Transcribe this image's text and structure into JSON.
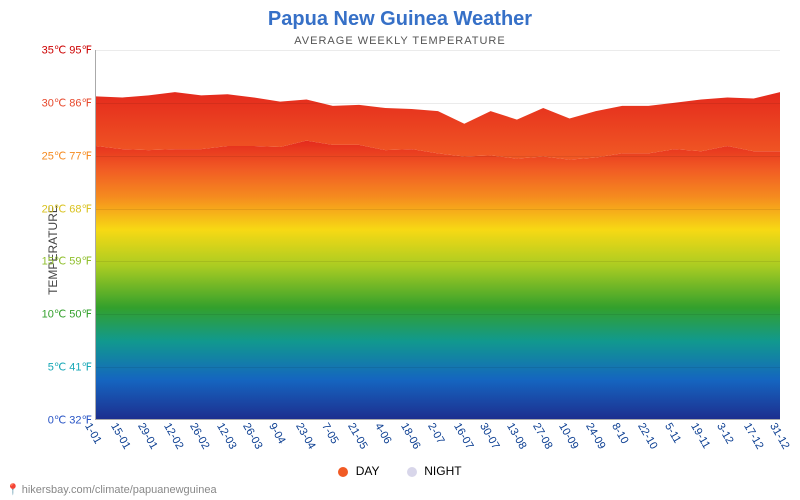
{
  "title": {
    "text": "Papua New Guinea Weather",
    "color": "#3670c7",
    "fontsize": 20
  },
  "subtitle": {
    "text": "AVERAGE WEEKLY TEMPERATURE",
    "fontsize": 11
  },
  "ylabel": "TEMPERATURE",
  "chart": {
    "type": "area",
    "ylim_c": [
      0,
      35
    ],
    "yticks": [
      {
        "c": 0,
        "label_c": "0℃",
        "label_f": "32℉",
        "color": "#2854c5"
      },
      {
        "c": 5,
        "label_c": "5℃",
        "label_f": "41℉",
        "color": "#16a7b6"
      },
      {
        "c": 10,
        "label_c": "10℃",
        "label_f": "50℉",
        "color": "#33a02c"
      },
      {
        "c": 15,
        "label_c": "15℃",
        "label_f": "59℉",
        "color": "#8fbf2c"
      },
      {
        "c": 20,
        "label_c": "20℃",
        "label_f": "68℉",
        "color": "#d9c21f"
      },
      {
        "c": 25,
        "label_c": "25℃",
        "label_f": "77℉",
        "color": "#f58a1f"
      },
      {
        "c": 30,
        "label_c": "30℃",
        "label_f": "86℉",
        "color": "#e7482c"
      },
      {
        "c": 35,
        "label_c": "35℃",
        "label_f": "95℉",
        "color": "#cc0000"
      }
    ],
    "x_categories": [
      "1-01",
      "15-01",
      "29-01",
      "12-02",
      "26-02",
      "12-03",
      "26-03",
      "9-04",
      "23-04",
      "7-05",
      "21-05",
      "4-06",
      "18-06",
      "2-07",
      "16-07",
      "30-07",
      "13-08",
      "27-08",
      "10-09",
      "24-09",
      "8-10",
      "22-10",
      "5-11",
      "19-11",
      "3-12",
      "17-12",
      "31-12"
    ],
    "series": {
      "day": {
        "label": "DAY",
        "swatch_color": "#f15a24",
        "values": [
          30.6,
          30.5,
          30.7,
          31.0,
          30.7,
          30.8,
          30.5,
          30.1,
          30.3,
          29.7,
          29.8,
          29.5,
          29.4,
          29.2,
          28.0,
          29.2,
          28.4,
          29.5,
          28.5,
          29.2,
          29.7,
          29.7,
          30.0,
          30.3,
          30.5,
          30.4,
          31.0
        ]
      },
      "night": {
        "label": "NIGHT",
        "swatch_color": "#d8d6ea",
        "values": [
          25.9,
          25.6,
          25.5,
          25.6,
          25.6,
          25.9,
          25.9,
          25.8,
          26.4,
          26.0,
          26.0,
          25.5,
          25.6,
          25.2,
          24.9,
          25.0,
          24.7,
          24.9,
          24.6,
          24.8,
          25.2,
          25.2,
          25.6,
          25.4,
          25.9,
          25.4,
          25.4
        ]
      }
    },
    "xlabel_color": "#0a3d91",
    "background_color": "#ffffff",
    "rainbow_gradient": [
      {
        "stop": 0.0,
        "color": "#1d2f8f"
      },
      {
        "stop": 0.14,
        "color": "#1565c0"
      },
      {
        "stop": 0.28,
        "color": "#11998e"
      },
      {
        "stop": 0.4,
        "color": "#33a02c"
      },
      {
        "stop": 0.55,
        "color": "#aacc22"
      },
      {
        "stop": 0.68,
        "color": "#f7d914"
      },
      {
        "stop": 0.8,
        "color": "#f58a1f"
      },
      {
        "stop": 0.9,
        "color": "#f15a24"
      },
      {
        "stop": 1.0,
        "color": "#e42a1d"
      }
    ],
    "night_fill": "#f15a24",
    "night_to_day_fade": "#e42a1d"
  },
  "legend": {
    "day": "DAY",
    "night": "NIGHT"
  },
  "attribution": {
    "text": "hikersbay.com/climate/papuanewguinea",
    "pin_color": "#e53935"
  }
}
